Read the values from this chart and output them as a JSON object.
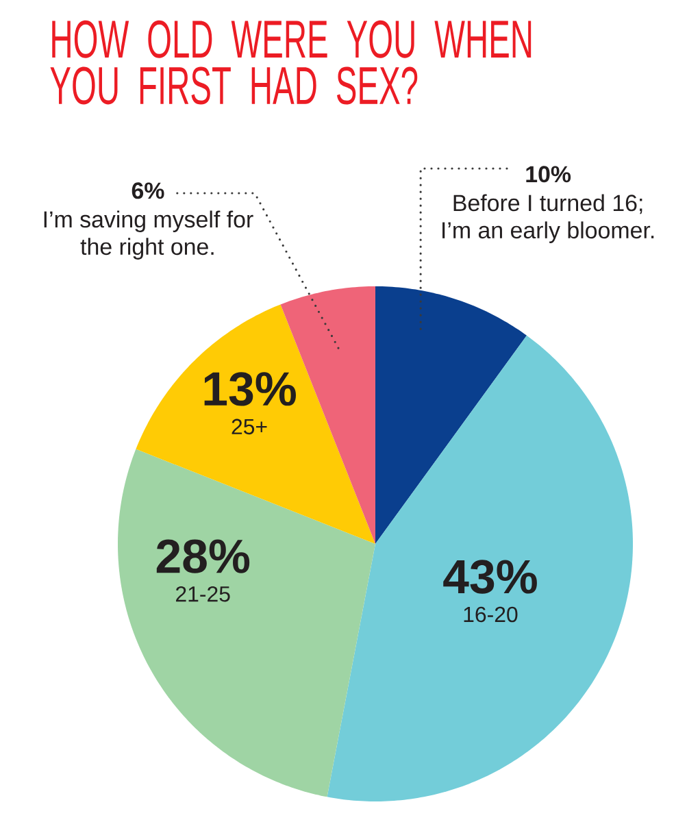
{
  "chart_data": {
    "type": "pie",
    "title": "HOW OLD WERE YOU WHEN YOU FIRST HAD SEX?",
    "categories": [
      "Before I turned 16; I’m an early bloomer.",
      "16-20",
      "21-25",
      "25+",
      "I’m saving myself for the right one."
    ],
    "values": [
      10,
      43,
      28,
      13,
      6
    ],
    "value_labels": [
      "10%",
      "43%",
      "28%",
      "13%",
      "6%"
    ],
    "colors": [
      "#0a3f8e",
      "#73cdd9",
      "#9fd4a4",
      "#ffcb05",
      "#ef6478"
    ]
  }
}
